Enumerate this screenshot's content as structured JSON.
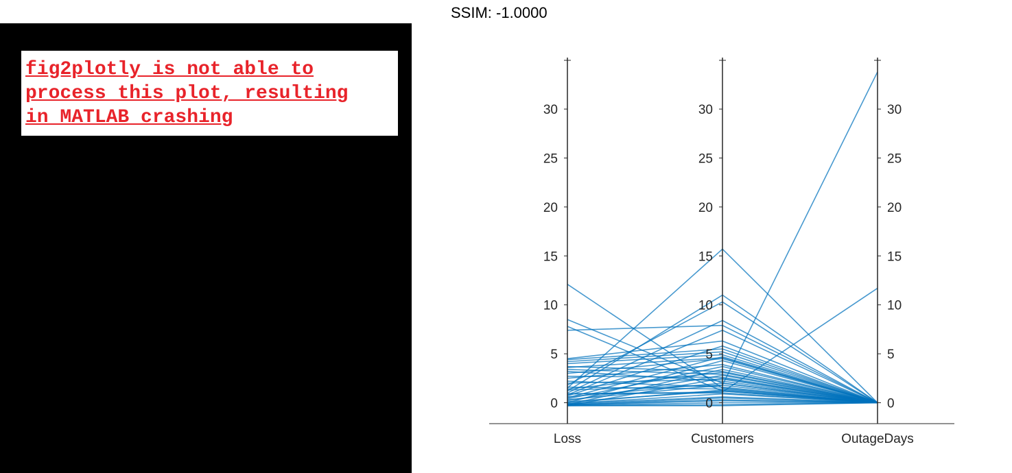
{
  "title": "SSIM: -1.0000",
  "notice": {
    "text": "fig2plotly is not able to\nprocess this plot, resulting\nin MATLAB crashing",
    "color": "#e8232a"
  },
  "chart_data": {
    "type": "parallel-coordinates",
    "axes": [
      "Loss",
      "Customers",
      "OutageDays"
    ],
    "ylim": [
      -2,
      35
    ],
    "yticks": [
      0,
      5,
      10,
      15,
      20,
      25,
      30
    ],
    "line_color": "#0072bd",
    "grid": false,
    "series": [
      [
        12.1,
        1.5,
        0.0
      ],
      [
        8.5,
        2.0,
        0.0
      ],
      [
        7.8,
        1.2,
        0.0
      ],
      [
        7.4,
        7.9,
        0.0
      ],
      [
        4.5,
        6.3,
        0.0
      ],
      [
        4.4,
        5.5,
        0.0
      ],
      [
        4.2,
        5.2,
        0.0
      ],
      [
        4.0,
        4.9,
        0.0
      ],
      [
        3.7,
        3.2,
        0.0
      ],
      [
        3.6,
        4.6,
        0.0
      ],
      [
        3.4,
        2.9,
        0.0
      ],
      [
        3.2,
        2.2,
        0.0
      ],
      [
        3.0,
        4.5,
        0.0
      ],
      [
        2.7,
        2.6,
        0.0
      ],
      [
        2.5,
        3.9,
        0.0
      ],
      [
        2.2,
        1.6,
        0.0
      ],
      [
        2.0,
        2.4,
        0.0
      ],
      [
        1.8,
        10.3,
        0.0
      ],
      [
        1.6,
        1.4,
        0.0
      ],
      [
        1.5,
        15.7,
        0.0
      ],
      [
        1.4,
        3.1,
        0.0
      ],
      [
        1.2,
        11.0,
        0.0
      ],
      [
        1.0,
        8.4,
        0.0
      ],
      [
        0.9,
        1.0,
        0.0
      ],
      [
        0.8,
        7.4,
        0.0
      ],
      [
        0.7,
        5.8,
        0.0
      ],
      [
        0.6,
        2.0,
        0.0
      ],
      [
        0.5,
        4.7,
        0.0
      ],
      [
        0.4,
        3.7,
        0.0
      ],
      [
        0.3,
        1.8,
        0.0
      ],
      [
        0.2,
        2.8,
        0.0
      ],
      [
        0.1,
        1.2,
        0.0
      ],
      [
        0.0,
        4.3,
        0.0
      ],
      [
        -0.1,
        0.6,
        0.0
      ],
      [
        -0.2,
        3.4,
        0.0
      ],
      [
        -0.2,
        0.3,
        0.0
      ],
      [
        -0.3,
        2.5,
        0.0
      ],
      [
        -0.3,
        -0.2,
        0.0
      ],
      [
        1.3,
        1.8,
        33.8
      ],
      [
        0.9,
        1.1,
        11.7
      ],
      [
        0.0,
        1.3,
        0.0
      ],
      [
        -0.1,
        0.9,
        0.0
      ],
      [
        -0.2,
        0.5,
        0.0
      ],
      [
        -0.25,
        0.2,
        0.0
      ],
      [
        -0.3,
        0.0,
        0.0
      ],
      [
        -0.3,
        -0.3,
        0.0
      ]
    ]
  }
}
